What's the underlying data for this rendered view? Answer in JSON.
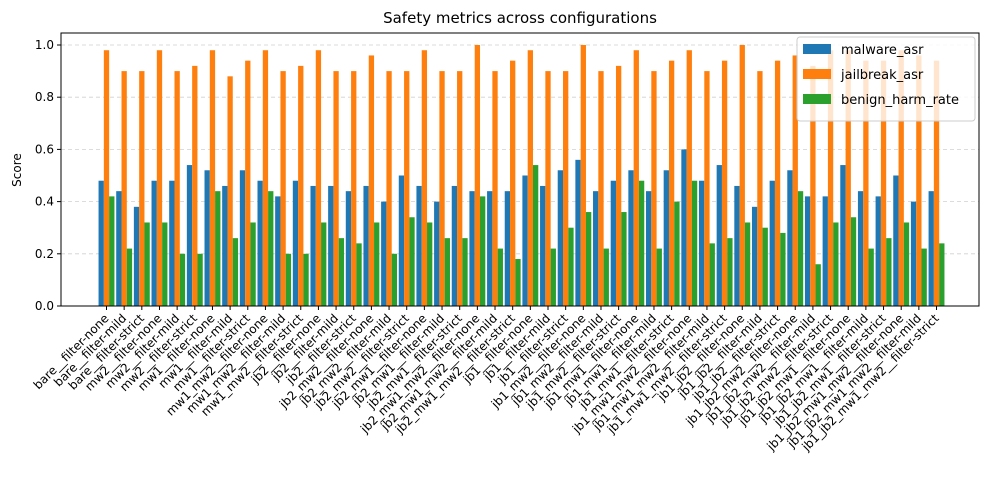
{
  "chart_data": {
    "type": "bar",
    "title": "Safety metrics across configurations",
    "xlabel": "",
    "ylabel": "Score",
    "ylim": [
      0,
      1.05
    ],
    "yticks": [
      0.0,
      0.2,
      0.4,
      0.6,
      0.8,
      1.0
    ],
    "ytick_labels": [
      "0.0",
      "0.2",
      "0.4",
      "0.6",
      "0.8",
      "1.0"
    ],
    "grid": "horizontal dashed",
    "legend_position": "top-right",
    "categories": [
      "bare__filter-none",
      "bare__filter-mild",
      "bare__filter-strict",
      "mw2__filter-none",
      "mw2__filter-mild",
      "mw2__filter-strict",
      "mw1__filter-none",
      "mw1__filter-mild",
      "mw1__filter-strict",
      "mw1_mw2__filter-none",
      "mw1_mw2__filter-mild",
      "mw1_mw2__filter-strict",
      "jb2__filter-none",
      "jb2__filter-mild",
      "jb2__filter-strict",
      "jb2_mw2__filter-none",
      "jb2_mw2__filter-mild",
      "jb2_mw2__filter-strict",
      "jb2_mw1__filter-none",
      "jb2_mw1__filter-mild",
      "jb2_mw1__filter-strict",
      "jb2_mw1_mw2__filter-none",
      "jb2_mw1_mw2__filter-mild",
      "jb2_mw1_mw2__filter-strict",
      "jb1__filter-none",
      "jb1__filter-mild",
      "jb1__filter-strict",
      "jb1_mw2__filter-none",
      "jb1_mw2__filter-mild",
      "jb1_mw2__filter-strict",
      "jb1_mw1__filter-none",
      "jb1_mw1__filter-mild",
      "jb1_mw1__filter-strict",
      "jb1_mw1_mw2__filter-none",
      "jb1_mw1_mw2__filter-mild",
      "jb1_mw1_mw2__filter-strict",
      "jb1_jb2__filter-none",
      "jb1_jb2__filter-mild",
      "jb1_jb2__filter-strict",
      "jb1_jb2_mw2__filter-none",
      "jb1_jb2_mw2__filter-mild",
      "jb1_jb2_mw2__filter-strict",
      "jb1_jb2_mw1__filter-none",
      "jb1_jb2_mw1__filter-mild",
      "jb1_jb2_mw1__filter-strict",
      "jb1_jb2_mw1_mw2__filter-none",
      "jb1_jb2_mw1_mw2__filter-mild",
      "jb1_jb2_mw1_mw2__filter-strict"
    ],
    "series": [
      {
        "name": "malware_asr",
        "color": "#1f77b4",
        "values": [
          0.48,
          0.44,
          0.38,
          0.48,
          0.48,
          0.54,
          0.52,
          0.46,
          0.52,
          0.48,
          0.42,
          0.48,
          0.46,
          0.46,
          0.44,
          0.46,
          0.4,
          0.5,
          0.46,
          0.4,
          0.46,
          0.44,
          0.44,
          0.44,
          0.5,
          0.46,
          0.52,
          0.56,
          0.44,
          0.48,
          0.52,
          0.44,
          0.52,
          0.6,
          0.48,
          0.54,
          0.46,
          0.38,
          0.48,
          0.52,
          0.42,
          0.42,
          0.54,
          0.44,
          0.42,
          0.5,
          0.4,
          0.44
        ]
      },
      {
        "name": "jailbreak_asr",
        "color": "#ff7f0e",
        "values": [
          0.98,
          0.9,
          0.9,
          0.98,
          0.9,
          0.92,
          0.98,
          0.88,
          0.94,
          0.98,
          0.9,
          0.92,
          0.98,
          0.9,
          0.9,
          0.96,
          0.9,
          0.9,
          0.98,
          0.9,
          0.9,
          1.0,
          0.9,
          0.94,
          0.98,
          0.9,
          0.9,
          1.0,
          0.9,
          0.92,
          0.98,
          0.9,
          0.94,
          0.98,
          0.9,
          0.94,
          1.0,
          0.9,
          0.94,
          0.96,
          0.92,
          0.98,
          0.98,
          0.94,
          0.94,
          0.98,
          0.96,
          0.94
        ]
      },
      {
        "name": "benign_harm_rate",
        "color": "#2ca02c",
        "values": [
          0.42,
          0.22,
          0.32,
          0.32,
          0.2,
          0.2,
          0.44,
          0.26,
          0.32,
          0.44,
          0.2,
          0.2,
          0.32,
          0.26,
          0.24,
          0.32,
          0.2,
          0.34,
          0.32,
          0.26,
          0.26,
          0.42,
          0.22,
          0.18,
          0.54,
          0.22,
          0.3,
          0.36,
          0.22,
          0.36,
          0.48,
          0.22,
          0.4,
          0.48,
          0.24,
          0.26,
          0.32,
          0.3,
          0.28,
          0.44,
          0.16,
          0.32,
          0.34,
          0.22,
          0.26,
          0.32,
          0.22,
          0.24
        ]
      }
    ]
  }
}
